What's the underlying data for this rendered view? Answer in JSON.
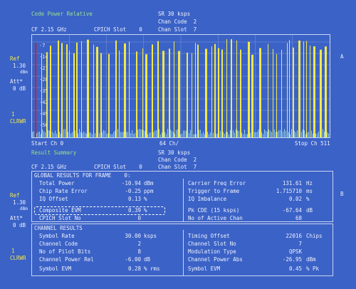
{
  "top": {
    "title": "Code Power Relative",
    "sr": "SR 30 ksps",
    "chan_code": "Chan Code  2",
    "cf": "CF 2.15 GHz",
    "cpich_slot": "CPICH Slot    0",
    "chan_slot": "Chan Slot  7"
  },
  "left_panel": {
    "ref_label": "Ref",
    "ref_value": "1.30",
    "ref_unit": "dBm",
    "att_label": "Att*",
    "att_value": "0 dB",
    "trace_num": "1",
    "trace_mode": "CLRWR"
  },
  "right_markers": {
    "a": "A",
    "b": "B"
  },
  "chart_axis": {
    "start": "Start Ch 0",
    "middle": "64 Ch/",
    "stop": "Stop Ch 511",
    "y_ticks": [
      "-7",
      "-14",
      "-21",
      "-28",
      "-35",
      "-42",
      "-49",
      "-56"
    ]
  },
  "chart_data": {
    "type": "bar",
    "xlabel": "",
    "ylabel": "",
    "x_range": [
      0,
      511
    ],
    "y_range": [
      -60,
      0
    ],
    "highlighted_channel_color": "#e01b1b",
    "bar_color": "#f2e84a",
    "noise_color": "#8fd0e8"
  },
  "bottom_header": {
    "title": "Result Summary",
    "sr": "SR 30 ksps",
    "chan_code": "Chan Code  2",
    "cf": "CF 2.15 GHz",
    "cpich_slot": "CPICH Slot    0",
    "chan_slot": "Chan Slot  7"
  },
  "global_results": {
    "heading": "GLOBAL RESULTS FOR FRAME    0:",
    "left_rows": [
      {
        "label": "Total Power",
        "value": "-10.94",
        "unit": "dBm"
      },
      {
        "label": "Chip Rate Error",
        "value": "-0.25",
        "unit": "ppm"
      },
      {
        "label": "IQ Offset",
        "value": "0.13",
        "unit": "%"
      },
      {
        "label": "Composite EVM",
        "value": "0.39",
        "unit": "%"
      },
      {
        "label": "CPICH Slot No",
        "value": "0",
        "unit": ""
      }
    ],
    "right_rows": [
      {
        "label": "Carrier Freq Error",
        "value": "131.61",
        "unit": "Hz"
      },
      {
        "label": "Trigger to Frame",
        "value": "1.715710",
        "unit": "ms"
      },
      {
        "label": "IQ Imbalance",
        "value": "0.02",
        "unit": "%"
      },
      {
        "label": "Pk CDE (15 ksps)",
        "value": "-67.64",
        "unit": "dB"
      },
      {
        "label": "No of Active Chan",
        "value": "68",
        "unit": ""
      }
    ]
  },
  "channel_results": {
    "heading": "CHANNEL RESULTS",
    "left_rows": [
      {
        "label": "Symbol Rate",
        "value": "30.00",
        "unit": "ksps"
      },
      {
        "label": "Channel Code",
        "value": "2",
        "unit": ""
      },
      {
        "label": "No of Pilot Bits",
        "value": "8",
        "unit": ""
      },
      {
        "label": "Channel Power Rel",
        "value": "-6.00",
        "unit": "dB"
      },
      {
        "label": "Symbol EVM",
        "value": "0.28",
        "unit": "% rms"
      }
    ],
    "right_rows": [
      {
        "label": "Timing Offset",
        "value": "22016",
        "unit": "Chips"
      },
      {
        "label": "Channel Slot No",
        "value": "7",
        "unit": ""
      },
      {
        "label": "Modulation Type",
        "value": "QPSK",
        "unit": ""
      },
      {
        "label": "Channel Power Abs",
        "value": "-26.95",
        "unit": "dBm"
      },
      {
        "label": "Symbol EVM",
        "value": "0.45",
        "unit": "% Pk"
      }
    ]
  }
}
